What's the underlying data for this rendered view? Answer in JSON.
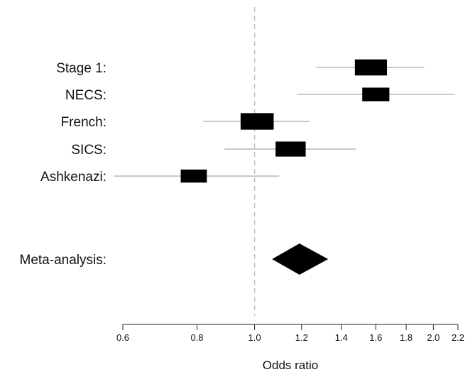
{
  "chart_data": {
    "type": "forest",
    "xlabel": "Odds ratio",
    "xscale": "log",
    "xlim": [
      0.6,
      2.2
    ],
    "reference_line": 1.0,
    "xticks": [
      0.6,
      0.8,
      1.0,
      1.2,
      1.4,
      1.6,
      1.8,
      2.0,
      2.2
    ],
    "xtick_labels": [
      "0.6",
      "0.8",
      "1.0",
      "1.2",
      "1.4",
      "1.6",
      "1.8",
      "2.0",
      "2.2"
    ],
    "studies": [
      {
        "label": "Stage 1:",
        "or": 1.57,
        "ci_low": 1.27,
        "ci_high": 1.93,
        "weight": 0.9
      },
      {
        "label": "NECS:",
        "or": 1.6,
        "ci_low": 1.18,
        "ci_high": 2.17,
        "weight": 0.65
      },
      {
        "label": "French:",
        "or": 1.01,
        "ci_low": 0.82,
        "ci_high": 1.24,
        "weight": 0.95
      },
      {
        "label": "SICS:",
        "or": 1.15,
        "ci_low": 0.89,
        "ci_high": 1.48,
        "weight": 0.8
      },
      {
        "label": "Ashkenazi:",
        "or": 0.79,
        "ci_low": 0.58,
        "ci_high": 1.1,
        "weight": 0.6
      }
    ],
    "meta": {
      "label": "Meta-analysis:",
      "or": 1.19,
      "ci_low": 1.07,
      "ci_high": 1.33
    }
  },
  "colors": {
    "box": "#000000",
    "ci_line": "#b5b5b5",
    "reference_line": "#bcbcbc",
    "axis": "#222222"
  }
}
